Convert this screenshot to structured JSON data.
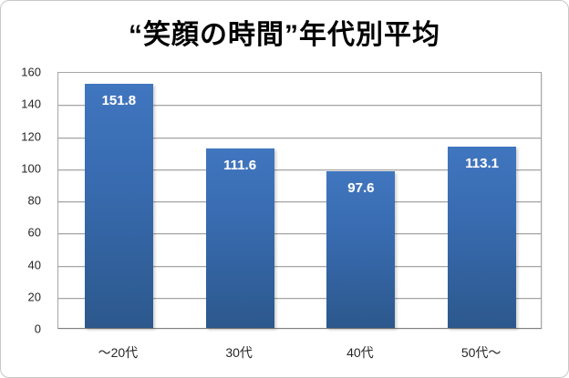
{
  "title": "“笑顔の時間”年代別平均",
  "chart_data": {
    "type": "bar",
    "title": "“笑顔の時間”年代別平均",
    "categories": [
      "～20代",
      "30代",
      "40代",
      "50代～"
    ],
    "values": [
      151.8,
      111.6,
      97.6,
      113.1
    ],
    "data_labels": [
      "151.8",
      "111.6",
      "97.6",
      "113.1"
    ],
    "xlabel": "",
    "ylabel": "",
    "ylim": [
      0,
      160
    ],
    "yticks": [
      0,
      20,
      40,
      60,
      80,
      100,
      120,
      140,
      160
    ],
    "grid": true,
    "legend": false,
    "bar_color_top": "#4076bf",
    "bar_color_bottom": "#2c588c",
    "data_label_color": "#ffffff",
    "gridline_color": "#a6a6a6",
    "axis_label_color": "#262626"
  }
}
